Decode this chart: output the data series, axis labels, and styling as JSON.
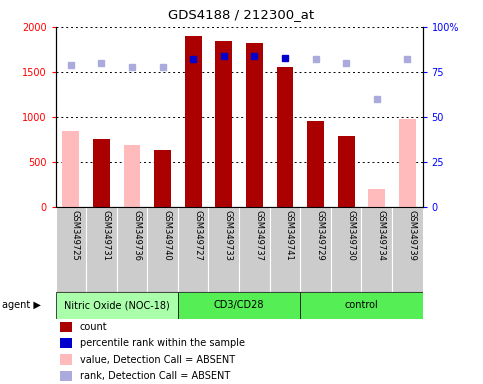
{
  "title": "GDS4188 / 212300_at",
  "samples": [
    "GSM349725",
    "GSM349731",
    "GSM349736",
    "GSM349740",
    "GSM349727",
    "GSM349733",
    "GSM349737",
    "GSM349741",
    "GSM349729",
    "GSM349730",
    "GSM349734",
    "GSM349739"
  ],
  "count_values": [
    null,
    760,
    null,
    640,
    1900,
    1840,
    1820,
    1560,
    960,
    790,
    null,
    null
  ],
  "count_absent": [
    850,
    null,
    690,
    null,
    null,
    null,
    null,
    null,
    null,
    null,
    200,
    980
  ],
  "rank_values": [
    null,
    null,
    null,
    null,
    82,
    84,
    84,
    83,
    null,
    null,
    null,
    null
  ],
  "rank_absent": [
    79,
    80,
    78,
    78,
    null,
    null,
    null,
    null,
    82,
    80,
    60,
    82
  ],
  "groups": [
    {
      "label": "Nitric Oxide (NOC-18)",
      "start": 0,
      "end": 4,
      "color": "#aaffaa"
    },
    {
      "label": "CD3/CD28",
      "start": 4,
      "end": 8,
      "color": "#55ee55"
    },
    {
      "label": "control",
      "start": 8,
      "end": 12,
      "color": "#55ee55"
    }
  ],
  "ylim_left": [
    0,
    2000
  ],
  "ylim_right": [
    0,
    100
  ],
  "yticks_left": [
    0,
    500,
    1000,
    1500,
    2000
  ],
  "yticks_right": [
    0,
    25,
    50,
    75,
    100
  ],
  "bar_color_count": "#aa0000",
  "bar_color_absent": "#ffbbbb",
  "dot_color_rank": "#0000cc",
  "dot_color_rank_absent": "#aaaadd",
  "bg_xlabel": "#cccccc",
  "bg_plot": "#ffffff"
}
